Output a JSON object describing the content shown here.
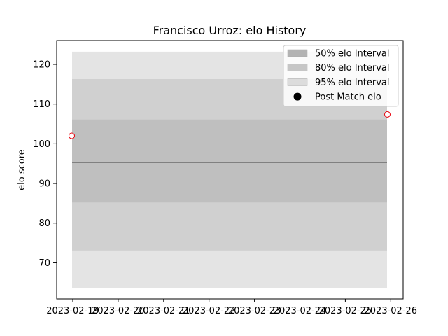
{
  "chart_data": {
    "type": "line",
    "title": "Francisco Urroz: elo History",
    "ylabel": "elo score",
    "xlabel": "",
    "x_start": "2023-02-19",
    "x_end": "2023-02-25",
    "xlim": [
      "2023-02-18",
      "2023-02-26"
    ],
    "ylim": [
      60.9,
      126.0
    ],
    "x_ticks": [
      "2023-02-19",
      "2023-02-20",
      "2023-02-21",
      "2023-02-22",
      "2023-02-23",
      "2023-02-24",
      "2023-02-25",
      "2023-02-26"
    ],
    "y_ticks": [
      70,
      80,
      90,
      100,
      110,
      120
    ],
    "mean_line": 95.3,
    "bands": [
      {
        "name": "95% elo Interval",
        "low": 63.6,
        "high": 123.2,
        "color": "#e4e4e4"
      },
      {
        "name": "80% elo Interval",
        "low": 73.1,
        "high": 116.3,
        "color": "#d0d0d0"
      },
      {
        "name": "50% elo Interval",
        "low": 85.2,
        "high": 106.1,
        "color": "#bfbfbf"
      }
    ],
    "points": [
      {
        "x": "2023-02-18",
        "y": 102.0
      },
      {
        "x": "2023-02-25",
        "y": 107.4
      }
    ],
    "point_color": "#e8000b",
    "legend": {
      "placement": "upper right",
      "entries": [
        {
          "label": "50% elo Interval",
          "color": "#b3b3b3"
        },
        {
          "label": "80% elo Interval",
          "color": "#c6c6c6"
        },
        {
          "label": "95% elo Interval",
          "color": "#dcdcdc"
        },
        {
          "label": "Post Match elo",
          "color": "#000000"
        }
      ]
    },
    "grid": false
  }
}
